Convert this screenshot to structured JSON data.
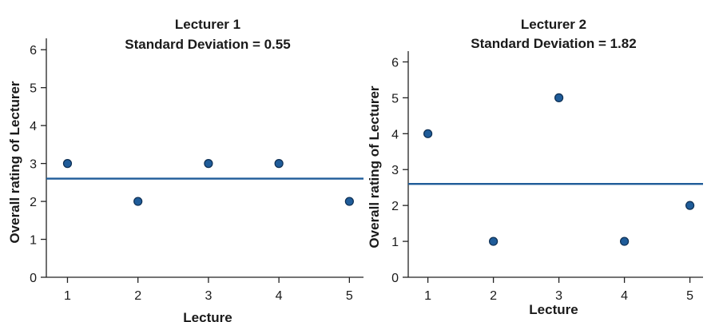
{
  "chart_data": [
    {
      "type": "scatter",
      "title": "Lecturer 1",
      "subtitle": "Standard Deviation = 0.55",
      "xlabel": "Lecture",
      "ylabel": "Overall rating of Lecturer",
      "x": [
        1,
        2,
        3,
        4,
        5
      ],
      "y": [
        3,
        2,
        3,
        3,
        2
      ],
      "mean_line": 2.6,
      "xticks": [
        1,
        2,
        3,
        4,
        5
      ],
      "yticks": [
        0,
        1,
        2,
        3,
        4,
        5,
        6
      ],
      "xlim": [
        0.7,
        5.2
      ],
      "ylim": [
        0,
        6.3
      ],
      "grid": false,
      "point_color": "#1f5c99",
      "line_color": "#1f5c99"
    },
    {
      "type": "scatter",
      "title": "Lecturer 2",
      "subtitle": "Standard Deviation = 1.82",
      "xlabel": "Lecture",
      "ylabel": "Overall rating of Lecturer",
      "x": [
        1,
        2,
        3,
        4,
        5
      ],
      "y": [
        4,
        1,
        5,
        1,
        2
      ],
      "mean_line": 2.6,
      "xticks": [
        1,
        2,
        3,
        4,
        5
      ],
      "yticks": [
        0,
        1,
        2,
        3,
        4,
        5,
        6
      ],
      "xlim": [
        0.7,
        5.2
      ],
      "ylim": [
        0,
        6.3
      ],
      "grid": false,
      "point_color": "#1f5c99",
      "line_color": "#1f5c99"
    }
  ]
}
